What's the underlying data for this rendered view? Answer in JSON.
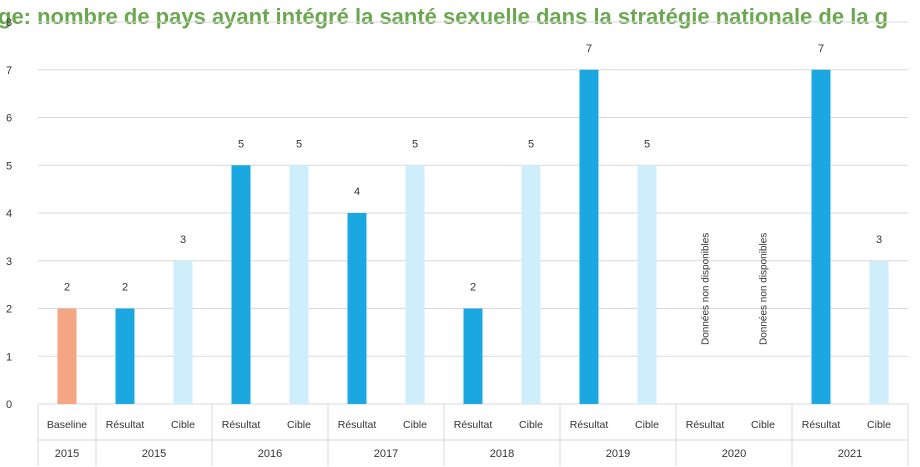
{
  "chart_data": {
    "type": "bar",
    "title": "ge: nombre de pays ayant intégré la santé sexuelle dans la stratégie nationale de la g",
    "ylim": [
      0,
      8
    ],
    "yticks": [
      0,
      1,
      2,
      3,
      4,
      5,
      6,
      7,
      8
    ],
    "grid": true,
    "categories": [
      {
        "label": "Baseline",
        "group": "2015",
        "value": 2,
        "kind": "baseline"
      },
      {
        "label": "Résultat",
        "group": "2015",
        "value": 2,
        "kind": "result"
      },
      {
        "label": "Cible",
        "group": "2015",
        "value": 3,
        "kind": "target"
      },
      {
        "label": "Résultat",
        "group": "2016",
        "value": 5,
        "kind": "result"
      },
      {
        "label": "Cible",
        "group": "2016",
        "value": 5,
        "kind": "target"
      },
      {
        "label": "Résultat",
        "group": "2017",
        "value": 4,
        "kind": "result"
      },
      {
        "label": "Cible",
        "group": "2017",
        "value": 5,
        "kind": "target"
      },
      {
        "label": "Résultat",
        "group": "2018",
        "value": 2,
        "kind": "result"
      },
      {
        "label": "Cible",
        "group": "2018",
        "value": 5,
        "kind": "target"
      },
      {
        "label": "Résultat",
        "group": "2019",
        "value": 7,
        "kind": "result"
      },
      {
        "label": "Cible",
        "group": "2019",
        "value": 5,
        "kind": "target"
      },
      {
        "label": "Résultat",
        "group": "2020",
        "value": null,
        "kind": "result",
        "note": "Données non disponibles"
      },
      {
        "label": "Cible",
        "group": "2020",
        "value": null,
        "kind": "target",
        "note": "Données non disponibles"
      },
      {
        "label": "Résultat",
        "group": "2021",
        "value": 7,
        "kind": "result"
      },
      {
        "label": "Cible",
        "group": "2021",
        "value": 3,
        "kind": "target"
      }
    ],
    "groups": [
      "2015",
      "2015",
      "2016",
      "2017",
      "2018",
      "2019",
      "2020",
      "2021"
    ],
    "colors": {
      "baseline": "#f4a582",
      "result": "#1ba8e0",
      "target": "#cdeefa"
    }
  }
}
